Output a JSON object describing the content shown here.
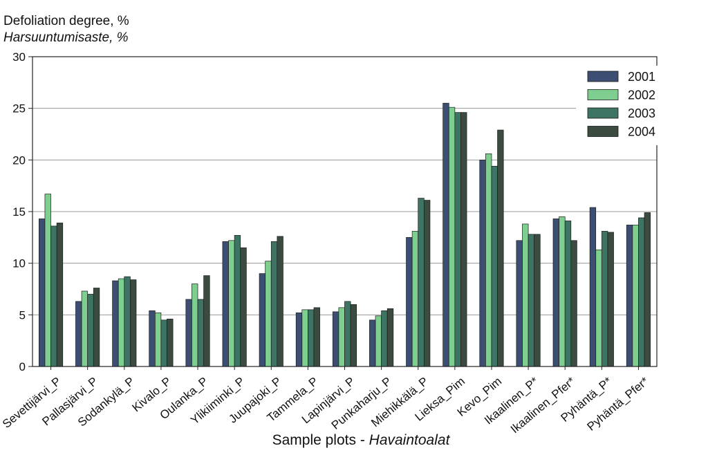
{
  "chart_data": {
    "type": "bar",
    "title": "",
    "ylabel_line1": "Defoliation degree, %",
    "ylabel_line2": "Harsuuntumisaste, %",
    "xlabel_main": "Sample plots - ",
    "xlabel_italic": "Havaintoalat",
    "ylim": [
      0,
      30
    ],
    "yticks": [
      0,
      5,
      10,
      15,
      20,
      25,
      30
    ],
    "grid": true,
    "legend_position": "top-right",
    "categories": [
      "Sevettijärvi_P",
      "Pallasjärvi_P",
      "Sodankylä_P",
      "Kivalo_P",
      "Oulanka_P",
      "Ylikiiminki_P",
      "Juupajoki_P",
      "Tammela_P",
      "Lapinjärvi_P",
      "Punkaharju_P",
      "Miehikkälä_P",
      "Lieksa_Pim",
      "Kevo_Pim",
      "Ikaalinen_P*",
      "Ikaalinen_Pfer*",
      "Pyhäntä_P*",
      "Pyhäntä_Pfer*"
    ],
    "series": [
      {
        "name": "2001",
        "color": "#3c4f72",
        "values": [
          14.3,
          6.3,
          8.3,
          5.4,
          6.5,
          12.1,
          9.0,
          5.2,
          5.3,
          4.5,
          12.5,
          25.5,
          20.0,
          12.2,
          14.3,
          15.4,
          13.7
        ]
      },
      {
        "name": "2002",
        "color": "#7dce8f",
        "values": [
          16.7,
          7.3,
          8.5,
          5.2,
          8.0,
          12.2,
          10.2,
          5.5,
          5.7,
          4.9,
          13.1,
          25.1,
          20.6,
          13.8,
          14.5,
          11.3,
          13.7
        ]
      },
      {
        "name": "2003",
        "color": "#3e7464",
        "values": [
          13.6,
          7.0,
          8.7,
          4.5,
          6.5,
          12.7,
          12.1,
          5.5,
          6.3,
          5.4,
          16.3,
          24.6,
          19.4,
          12.8,
          14.1,
          13.1,
          14.4
        ]
      },
      {
        "name": "2004",
        "color": "#3b4b40",
        "values": [
          13.9,
          7.6,
          8.4,
          4.6,
          8.8,
          11.5,
          12.6,
          5.7,
          6.0,
          5.6,
          16.1,
          24.6,
          22.9,
          12.8,
          12.2,
          13.0,
          14.9
        ]
      }
    ]
  }
}
